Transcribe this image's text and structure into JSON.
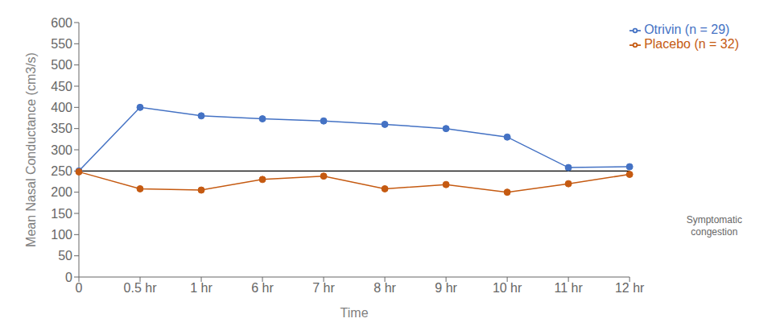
{
  "chart_data": {
    "type": "line",
    "categories": [
      "0",
      "0.5 hr",
      "1 hr",
      "6 hr",
      "7 hr",
      "8 hr",
      "9 hr",
      "10 hr",
      "11 hr",
      "12 hr"
    ],
    "series": [
      {
        "name": "Otrivin (n = 29)",
        "color": "#4472c4",
        "marker": "circle",
        "values": [
          250,
          400,
          380,
          373,
          368,
          360,
          350,
          330,
          258,
          260
        ]
      },
      {
        "name": "Placebo (n = 32)",
        "color": "#c55a11",
        "marker": "circle",
        "values": [
          248,
          208,
          205,
          230,
          238,
          208,
          218,
          200,
          220,
          242
        ]
      }
    ],
    "x_label": "Time",
    "y_label": "Mean Nasal Conductance (cm3/s)",
    "ylim": [
      0,
      600
    ],
    "yticks": [
      0,
      50,
      100,
      150,
      200,
      250,
      300,
      350,
      400,
      450,
      500,
      550,
      600
    ],
    "reference_lines": [
      {
        "y": 250,
        "color": "#000000"
      }
    ],
    "annotations": [
      {
        "text": "Symptomatic\ncongestion"
      }
    ],
    "legend": "upper right",
    "grid": false
  }
}
